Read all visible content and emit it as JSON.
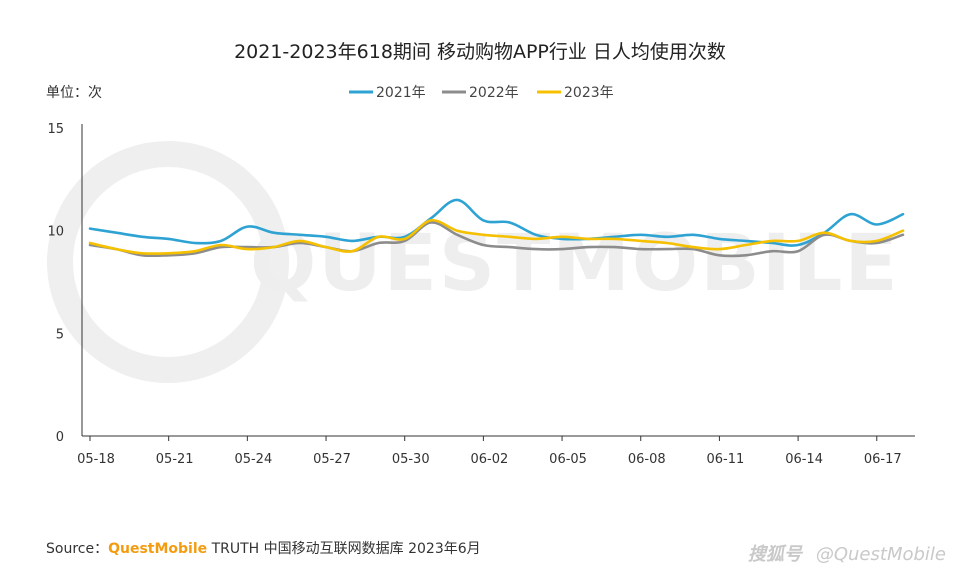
{
  "chart_data": {
    "type": "line",
    "title": "2021-2023年618期间 移动购物APP行业 日人均使用次数",
    "unit_label": "单位：次",
    "ylim": [
      0,
      15
    ],
    "yticks": [
      0,
      5,
      10,
      15
    ],
    "grid": false,
    "legend_position": "top-center",
    "categories": [
      "05-18",
      "05-19",
      "05-20",
      "05-21",
      "05-22",
      "05-23",
      "05-24",
      "05-25",
      "05-26",
      "05-27",
      "05-28",
      "05-29",
      "05-30",
      "05-31",
      "06-01",
      "06-02",
      "06-03",
      "06-04",
      "06-05",
      "06-06",
      "06-07",
      "06-08",
      "06-09",
      "06-10",
      "06-11",
      "06-12",
      "06-13",
      "06-14",
      "06-15",
      "06-16",
      "06-17",
      "06-18"
    ],
    "tick_labels": [
      "05-18",
      "05-21",
      "05-24",
      "05-27",
      "05-30",
      "06-02",
      "06-05",
      "06-08",
      "06-11",
      "06-14",
      "06-17"
    ],
    "tick_indices": [
      0,
      3,
      6,
      9,
      12,
      15,
      18,
      21,
      24,
      27,
      30
    ],
    "series": [
      {
        "name": "2021年",
        "color": "#2ea3d3",
        "values": [
          10.1,
          9.9,
          9.7,
          9.6,
          9.4,
          9.5,
          10.2,
          9.9,
          9.8,
          9.7,
          9.5,
          9.7,
          9.7,
          10.6,
          11.5,
          10.5,
          10.4,
          9.8,
          9.6,
          9.6,
          9.7,
          9.8,
          9.7,
          9.8,
          9.6,
          9.5,
          9.4,
          9.3,
          9.9,
          10.8,
          10.3,
          10.8
        ]
      },
      {
        "name": "2022年",
        "color": "#8c8c8c",
        "values": [
          9.3,
          9.1,
          8.8,
          8.8,
          8.9,
          9.2,
          9.2,
          9.2,
          9.4,
          9.2,
          9.0,
          9.4,
          9.5,
          10.4,
          9.8,
          9.3,
          9.2,
          9.1,
          9.1,
          9.2,
          9.2,
          9.1,
          9.1,
          9.1,
          8.8,
          8.8,
          9.0,
          9.0,
          9.8,
          9.5,
          9.4,
          9.8
        ]
      },
      {
        "name": "2023年",
        "color": "#f5c000",
        "values": [
          9.4,
          9.1,
          8.9,
          8.9,
          9.0,
          9.3,
          9.1,
          9.2,
          9.5,
          9.2,
          9.0,
          9.7,
          9.6,
          10.5,
          10.0,
          9.8,
          9.7,
          9.6,
          9.7,
          9.6,
          9.6,
          9.5,
          9.4,
          9.2,
          9.1,
          9.3,
          9.5,
          9.5,
          9.9,
          9.5,
          9.5,
          10.0
        ]
      }
    ]
  },
  "footer": {
    "source_prefix": "Source：",
    "source_brand": "QuestMobile",
    "source_rest": " TRUTH 中国移动互联网数据库 2023年6月"
  },
  "watermark": {
    "big_text": "QUESTMOBILE",
    "platform": "搜狐号",
    "account": "@QuestMobile"
  }
}
